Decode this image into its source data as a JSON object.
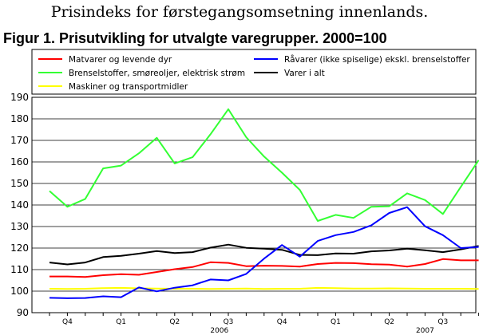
{
  "header": {
    "text": "Prisindeks for førstegangsomsetning innenlands."
  },
  "chart_data": {
    "type": "line",
    "title": "Figur 1. Prisutvikling for utvalgte varegrupper. 2000=100",
    "xlabel": "",
    "ylabel": "",
    "ylim": [
      90,
      190
    ],
    "yticks": [
      90,
      100,
      110,
      120,
      130,
      140,
      150,
      160,
      170,
      180,
      190
    ],
    "grid": true,
    "legend_position": "top",
    "quarter_labels": [
      "Q4",
      "Q1",
      "Q2",
      "Q3",
      "Q4",
      "Q1",
      "Q2",
      "Q3"
    ],
    "year_labels": [
      "2006",
      "2007"
    ],
    "series": [
      {
        "name": "Matvarer og levende dyr",
        "color": "#ff0000",
        "values": [
          106.8,
          106.8,
          106.6,
          107.4,
          107.9,
          107.6,
          108.9,
          110.2,
          111.2,
          113.4,
          113.1,
          111.6,
          111.8,
          111.7,
          111.4,
          112.6,
          113.1,
          113.0,
          112.5,
          112.3,
          111.4,
          112.6,
          114.9,
          114.3,
          114.3
        ]
      },
      {
        "name": "Brenselstoffer, smøreoljer, elektrisk strøm",
        "color": "#33ff33",
        "values": [
          146.5,
          139.2,
          142.8,
          157.0,
          158.3,
          164.0,
          171.2,
          159.3,
          162.2,
          172.8,
          184.5,
          171.5,
          162.5,
          155.0,
          147.0,
          132.6,
          135.4,
          134.0,
          139.2,
          139.4,
          145.4,
          142.3,
          135.8,
          148.4,
          160.8
        ]
      },
      {
        "name": "Maskiner og transportmidler",
        "color": "#ffff00",
        "values": [
          101.1,
          101.0,
          101.1,
          101.4,
          101.5,
          101.3,
          101.2,
          101.1,
          101.1,
          101.0,
          101.1,
          101.2,
          101.0,
          101.1,
          101.1,
          101.5,
          101.4,
          101.2,
          101.2,
          101.3,
          101.2,
          101.1,
          101.1,
          101.1,
          101.0
        ]
      },
      {
        "name": "Råvarer (ikke spiselige) ekskl. brenselstoffer",
        "color": "#0000ff",
        "values": [
          96.9,
          96.7,
          96.8,
          97.6,
          97.2,
          101.7,
          99.9,
          101.6,
          102.7,
          105.4,
          105.0,
          108.0,
          115.1,
          121.4,
          116.0,
          123.3,
          126.0,
          127.5,
          130.6,
          136.3,
          139.0,
          130.1,
          126.0,
          120.0,
          120.5
        ]
      },
      {
        "name": "Varer i alt",
        "color": "#000000",
        "values": [
          113.3,
          112.4,
          113.3,
          115.8,
          116.4,
          117.4,
          118.6,
          117.7,
          118.1,
          120.2,
          121.6,
          120.1,
          119.7,
          119.2,
          116.8,
          116.7,
          117.5,
          117.4,
          118.5,
          118.9,
          119.7,
          119.0,
          118.1,
          119.4,
          121.0
        ]
      }
    ]
  }
}
